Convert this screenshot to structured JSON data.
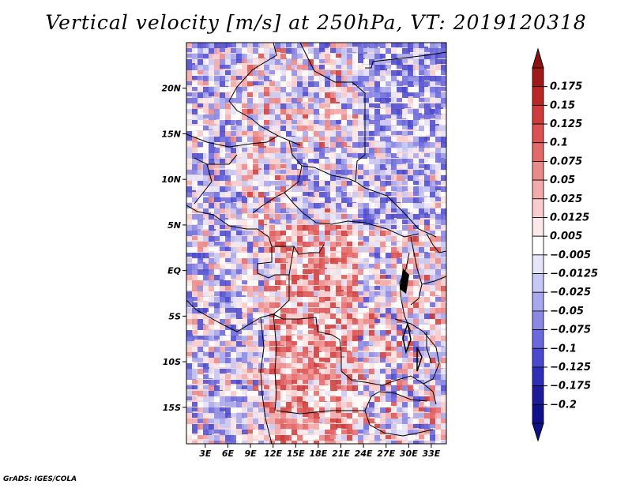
{
  "title": "Vertical velocity [m/s] at 250hPa, VT: 2019120318",
  "credit": "GrADS: IGES/COLA",
  "map": {
    "lat_labels": [
      "20N",
      "15N",
      "10N",
      "5N",
      "EQ",
      "5S",
      "10S",
      "15S"
    ],
    "lat_values": [
      20,
      15,
      10,
      5,
      0,
      -5,
      -10,
      -15
    ],
    "lon_labels": [
      "3E",
      "6E",
      "9E",
      "12E",
      "15E",
      "18E",
      "21E",
      "24E",
      "27E",
      "30E",
      "33E"
    ],
    "lon_values": [
      3,
      6,
      9,
      12,
      15,
      18,
      21,
      24,
      27,
      30,
      33
    ],
    "lon_range": [
      0.5,
      35
    ],
    "lat_range": [
      -19,
      25
    ]
  },
  "colorbar": {
    "labels": [
      "0.175",
      "0.15",
      "0.125",
      "0.1",
      "0.075",
      "0.05",
      "0.025",
      "0.0125",
      "0.005",
      "-0.005",
      "-0.0125",
      "-0.025",
      "-0.05",
      "-0.075",
      "-0.1",
      "-0.125",
      "-0.175",
      "-0.2"
    ],
    "colors": [
      "#a01818",
      "#bb2626",
      "#cf3a3a",
      "#dc5252",
      "#e46a6a",
      "#ec8a8a",
      "#f3aaaa",
      "#f9cdcd",
      "#fde9e9",
      "#ffffff",
      "#e6e6fb",
      "#c8c8f4",
      "#a8a8ee",
      "#8a8ae6",
      "#6a6ade",
      "#4a4ad0",
      "#2e2eb8",
      "#1c1c9a",
      "#10108a"
    ],
    "top_arrow_color": "#8e1212",
    "bottom_arrow_color": "#10108a"
  }
}
